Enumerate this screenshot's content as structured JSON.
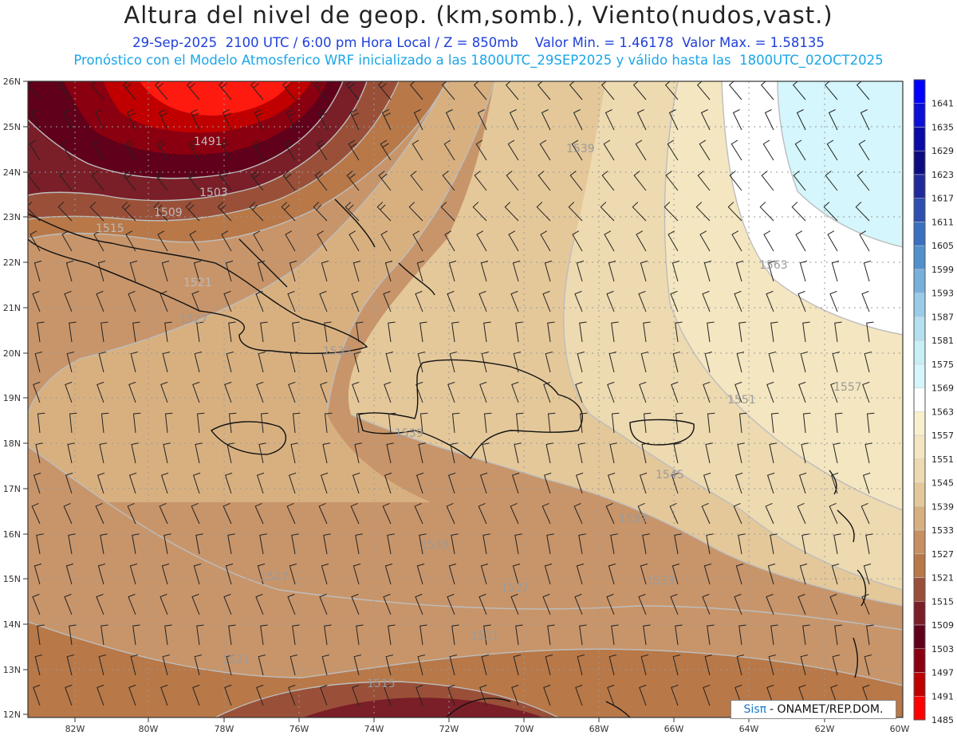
{
  "header": {
    "title": "Altura del nivel de geop. (km,somb.), Viento(nudos,vast.)",
    "line1": "29-Sep-2025  2100 UTC / 6:00 pm Hora Local / Z = 850mb    Valor Min. = 1.46178  Valor Max. = 1.58135",
    "line2": "Pronóstico con el Modelo Atmosferico WRF inicializado a las 1800UTC_29SEP2025 y válido hasta las  1800UTC_02OCT2025"
  },
  "axes": {
    "lat_labels": [
      "26N",
      "25N",
      "24N",
      "23N",
      "22N",
      "21N",
      "20N",
      "19N",
      "18N",
      "17N",
      "16N",
      "15N",
      "14N",
      "13N",
      "12N"
    ],
    "lon_labels": [
      "82W",
      "80W",
      "78W",
      "76W",
      "74W",
      "72W",
      "70W",
      "68W",
      "66W",
      "64W",
      "62W",
      "60W"
    ]
  },
  "contour_labels": [
    "1491",
    "1503",
    "1509",
    "1515",
    "1521",
    "1527",
    "1533",
    "1539",
    "1545",
    "1551",
    "1557",
    "1563",
    "1539",
    "1533",
    "1527",
    "1521",
    "1515",
    "1521",
    "1527",
    "1533",
    "1539",
    "1545",
    "1551",
    "1557"
  ],
  "colorbar": {
    "levels": [
      "1641",
      "1635",
      "1629",
      "1623",
      "1617",
      "1611",
      "1605",
      "1599",
      "1593",
      "1587",
      "1581",
      "1575",
      "1569",
      "1563",
      "1557",
      "1551",
      "1545",
      "1539",
      "1533",
      "1527",
      "1521",
      "1515",
      "1509",
      "1503",
      "1497",
      "1491",
      "1485"
    ],
    "colors": [
      "#0000ff",
      "#0a10d8",
      "#0a0aa8",
      "#0c0c80",
      "#202a9a",
      "#2c4fb0",
      "#3a70c0",
      "#5090cc",
      "#78b0dc",
      "#98cce8",
      "#b4e0f0",
      "#c8eef6",
      "#d4f6fc",
      "#ffffff",
      "#f8efcc",
      "#f4e6c0",
      "#eedab0",
      "#e4c89a",
      "#d8b080",
      "#c89060",
      "#b87848",
      "#9a5038",
      "#7a1e28",
      "#60001a",
      "#8a0010",
      "#c00000",
      "#ff0000"
    ]
  },
  "credit": {
    "brand": "Sisπ",
    "text": "- ONAMET/REP.DOM."
  }
}
